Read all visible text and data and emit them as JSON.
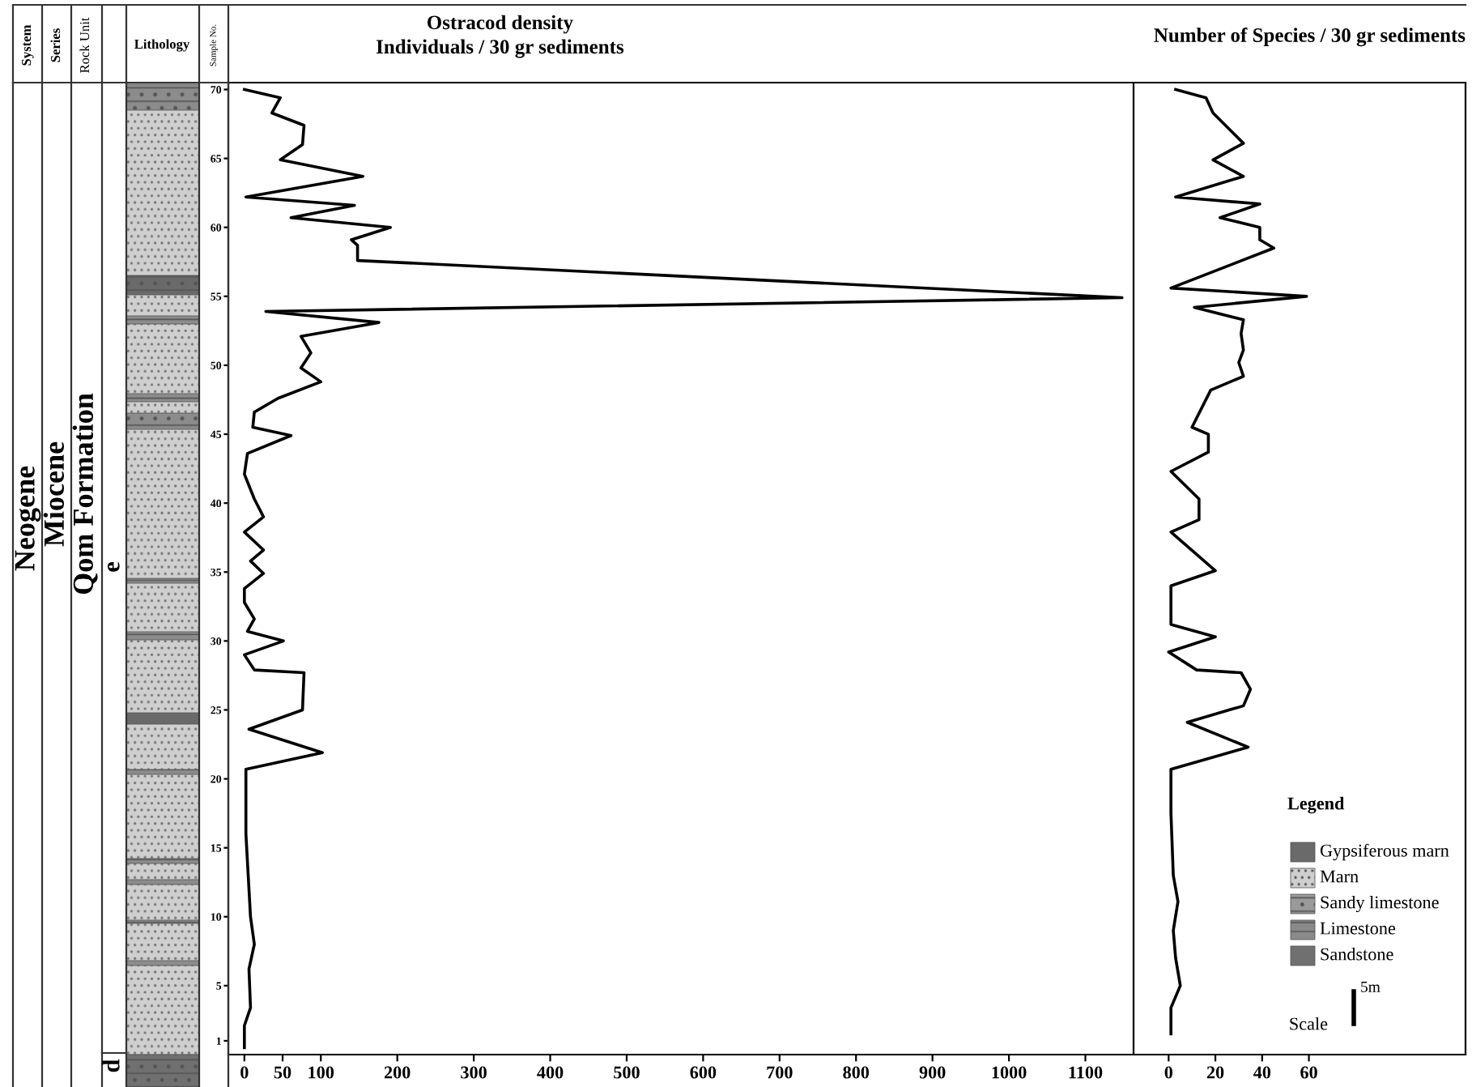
{
  "chart_data": [
    {
      "type": "line",
      "orientation": "horizontal",
      "title": "Ostracod density",
      "subtitle": "Individuals / 30 gr sediments",
      "ylabel": "Sample No.",
      "annotations": [
        "System",
        "Series",
        "Rock Unit",
        "Lithology",
        "Neogene",
        "Miocene",
        "Qom Formation",
        "e",
        "d"
      ],
      "xlim": [
        -21,
        1163
      ],
      "xticks": [
        0,
        50,
        100,
        200,
        300,
        400,
        500,
        600,
        700,
        800,
        900,
        1000,
        1100
      ],
      "ylim": [
        0,
        70.5
      ],
      "yticks": [
        70,
        65,
        60,
        55,
        50,
        45,
        40,
        35,
        30,
        25,
        20,
        15,
        10,
        5,
        1
      ],
      "series": [
        {
          "color": "#000000",
          "x": [
            70,
            69.4,
            68.3,
            67.4,
            66.0,
            64.9,
            63.7,
            62.2,
            61.6,
            60.7,
            60,
            59.1,
            58.7,
            57.6,
            54.9,
            53.9,
            53.1,
            52.1,
            50.9,
            49.8,
            48.8,
            47.6,
            46.6,
            45.5,
            44.9,
            43.6,
            42.1,
            40.3,
            39.0,
            37.9,
            36.6,
            35.8,
            34.9,
            33.8,
            32.8,
            31.6,
            30.7,
            30,
            29.0,
            27.9,
            27.7,
            25,
            23.6,
            21.9,
            20.7,
            16.0,
            10,
            8.0,
            6.2,
            3.4,
            2.1,
            0.5
          ],
          "values": [
            0,
            47,
            36,
            78,
            76,
            47,
            155,
            2,
            144,
            61,
            191,
            140,
            148,
            148,
            1148,
            28,
            176,
            74,
            87,
            74,
            100,
            44,
            13,
            11,
            61,
            4,
            0,
            13,
            25,
            0,
            25,
            8,
            25,
            0,
            0,
            13,
            4,
            51,
            0,
            13,
            78,
            76,
            6,
            102,
            2,
            2,
            8,
            13,
            6,
            8,
            0,
            0
          ]
        }
      ]
    },
    {
      "type": "line",
      "orientation": "horizontal",
      "title": "Number of Species / 30 gr sediments",
      "annotations": [
        "Legend",
        "Gypsiferous marn",
        "Marn",
        "Sandy limestone",
        "Limestone",
        "Sandstone",
        "Scale",
        "5m"
      ],
      "xlim": [
        -15,
        127
      ],
      "xticks": [
        0,
        20,
        40,
        60
      ],
      "ylim": [
        0,
        70.5
      ],
      "tick_labels": "x",
      "series": [
        {
          "color": "#000000",
          "x": [
            70,
            69.4,
            68.3,
            66.1,
            64.9,
            63.7,
            62.2,
            61.7,
            60.7,
            60,
            59.1,
            58.5,
            55.6,
            55,
            54.2,
            53.3,
            52.3,
            51.1,
            50.2,
            49.2,
            48.2,
            45.5,
            45,
            43.7,
            42.3,
            40.3,
            38.8,
            37.9,
            35.1,
            34.0,
            32.4,
            31.2,
            30.3,
            29.2,
            27.9,
            27.7,
            26.5,
            25.3,
            24.1,
            22.3,
            20.7,
            17.5,
            13.0,
            11.1,
            9.0,
            7.0,
            5,
            3.4,
            1.5
          ],
          "values": [
            3,
            16,
            19,
            32,
            19,
            32,
            3,
            39,
            22,
            39,
            39,
            45,
            1,
            59,
            11,
            32,
            31,
            32,
            30,
            32,
            18,
            10,
            17,
            17,
            1,
            13,
            13,
            1,
            20,
            1,
            1,
            1,
            20,
            0,
            12,
            31,
            35,
            32,
            8,
            34,
            1,
            1,
            2,
            4,
            2,
            3,
            5,
            1,
            1
          ]
        }
      ]
    }
  ]
}
